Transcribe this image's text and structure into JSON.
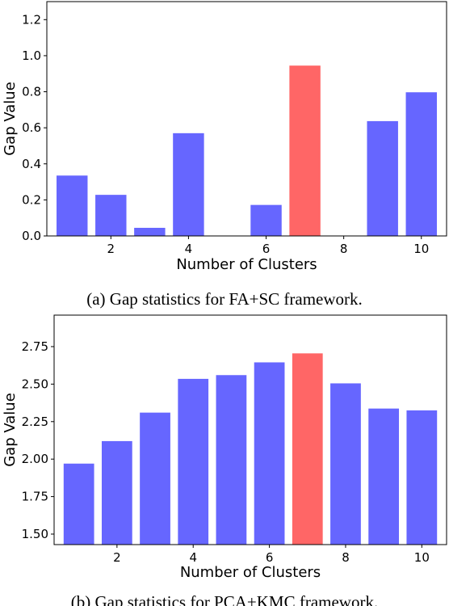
{
  "chart_data": [
    {
      "type": "bar",
      "x": [
        1,
        2,
        3,
        4,
        5,
        6,
        7,
        8,
        9,
        10
      ],
      "values": [
        0.335,
        0.228,
        0.045,
        0.57,
        0.0,
        0.172,
        0.945,
        0.0,
        0.637,
        0.797
      ],
      "highlight_index": 6,
      "xlabel": "Number of Clusters",
      "ylabel": "Gap Value",
      "ylim": [
        0,
        1.3
      ],
      "xlim": [
        0.35,
        10.65
      ],
      "yticks": [
        0.0,
        0.2,
        0.4,
        0.6,
        0.8,
        1.0,
        1.2
      ],
      "ytick_labels": [
        "0.0",
        "0.2",
        "0.4",
        "0.6",
        "0.8",
        "1.0",
        "1.2"
      ],
      "xticks": [
        2,
        4,
        6,
        8,
        10
      ],
      "xtick_labels": [
        "2",
        "4",
        "6",
        "8",
        "10"
      ],
      "caption": "(a) Gap statistics for FA+SC framework.",
      "grid": false
    },
    {
      "type": "bar",
      "x": [
        1,
        2,
        3,
        4,
        5,
        6,
        7,
        8,
        9,
        10
      ],
      "values": [
        1.97,
        2.12,
        2.31,
        2.535,
        2.56,
        2.645,
        2.705,
        2.505,
        2.337,
        2.325
      ],
      "highlight_index": 6,
      "xlabel": "Number of Clusters",
      "ylabel": "Gap Value",
      "ylim": [
        1.43,
        2.96
      ],
      "xlim": [
        0.35,
        10.65
      ],
      "yticks": [
        1.5,
        1.75,
        2.0,
        2.25,
        2.5,
        2.75
      ],
      "ytick_labels": [
        "1.50",
        "1.75",
        "2.00",
        "2.25",
        "2.50",
        "2.75"
      ],
      "xticks": [
        2,
        4,
        6,
        8,
        10
      ],
      "xtick_labels": [
        "2",
        "4",
        "6",
        "8",
        "10"
      ],
      "caption": "(b) Gap statistics for PCA+KMC framework.",
      "grid": false
    }
  ],
  "colors": {
    "bar": "#6666ff",
    "highlight": "#ff6666",
    "axis": "#000000"
  }
}
